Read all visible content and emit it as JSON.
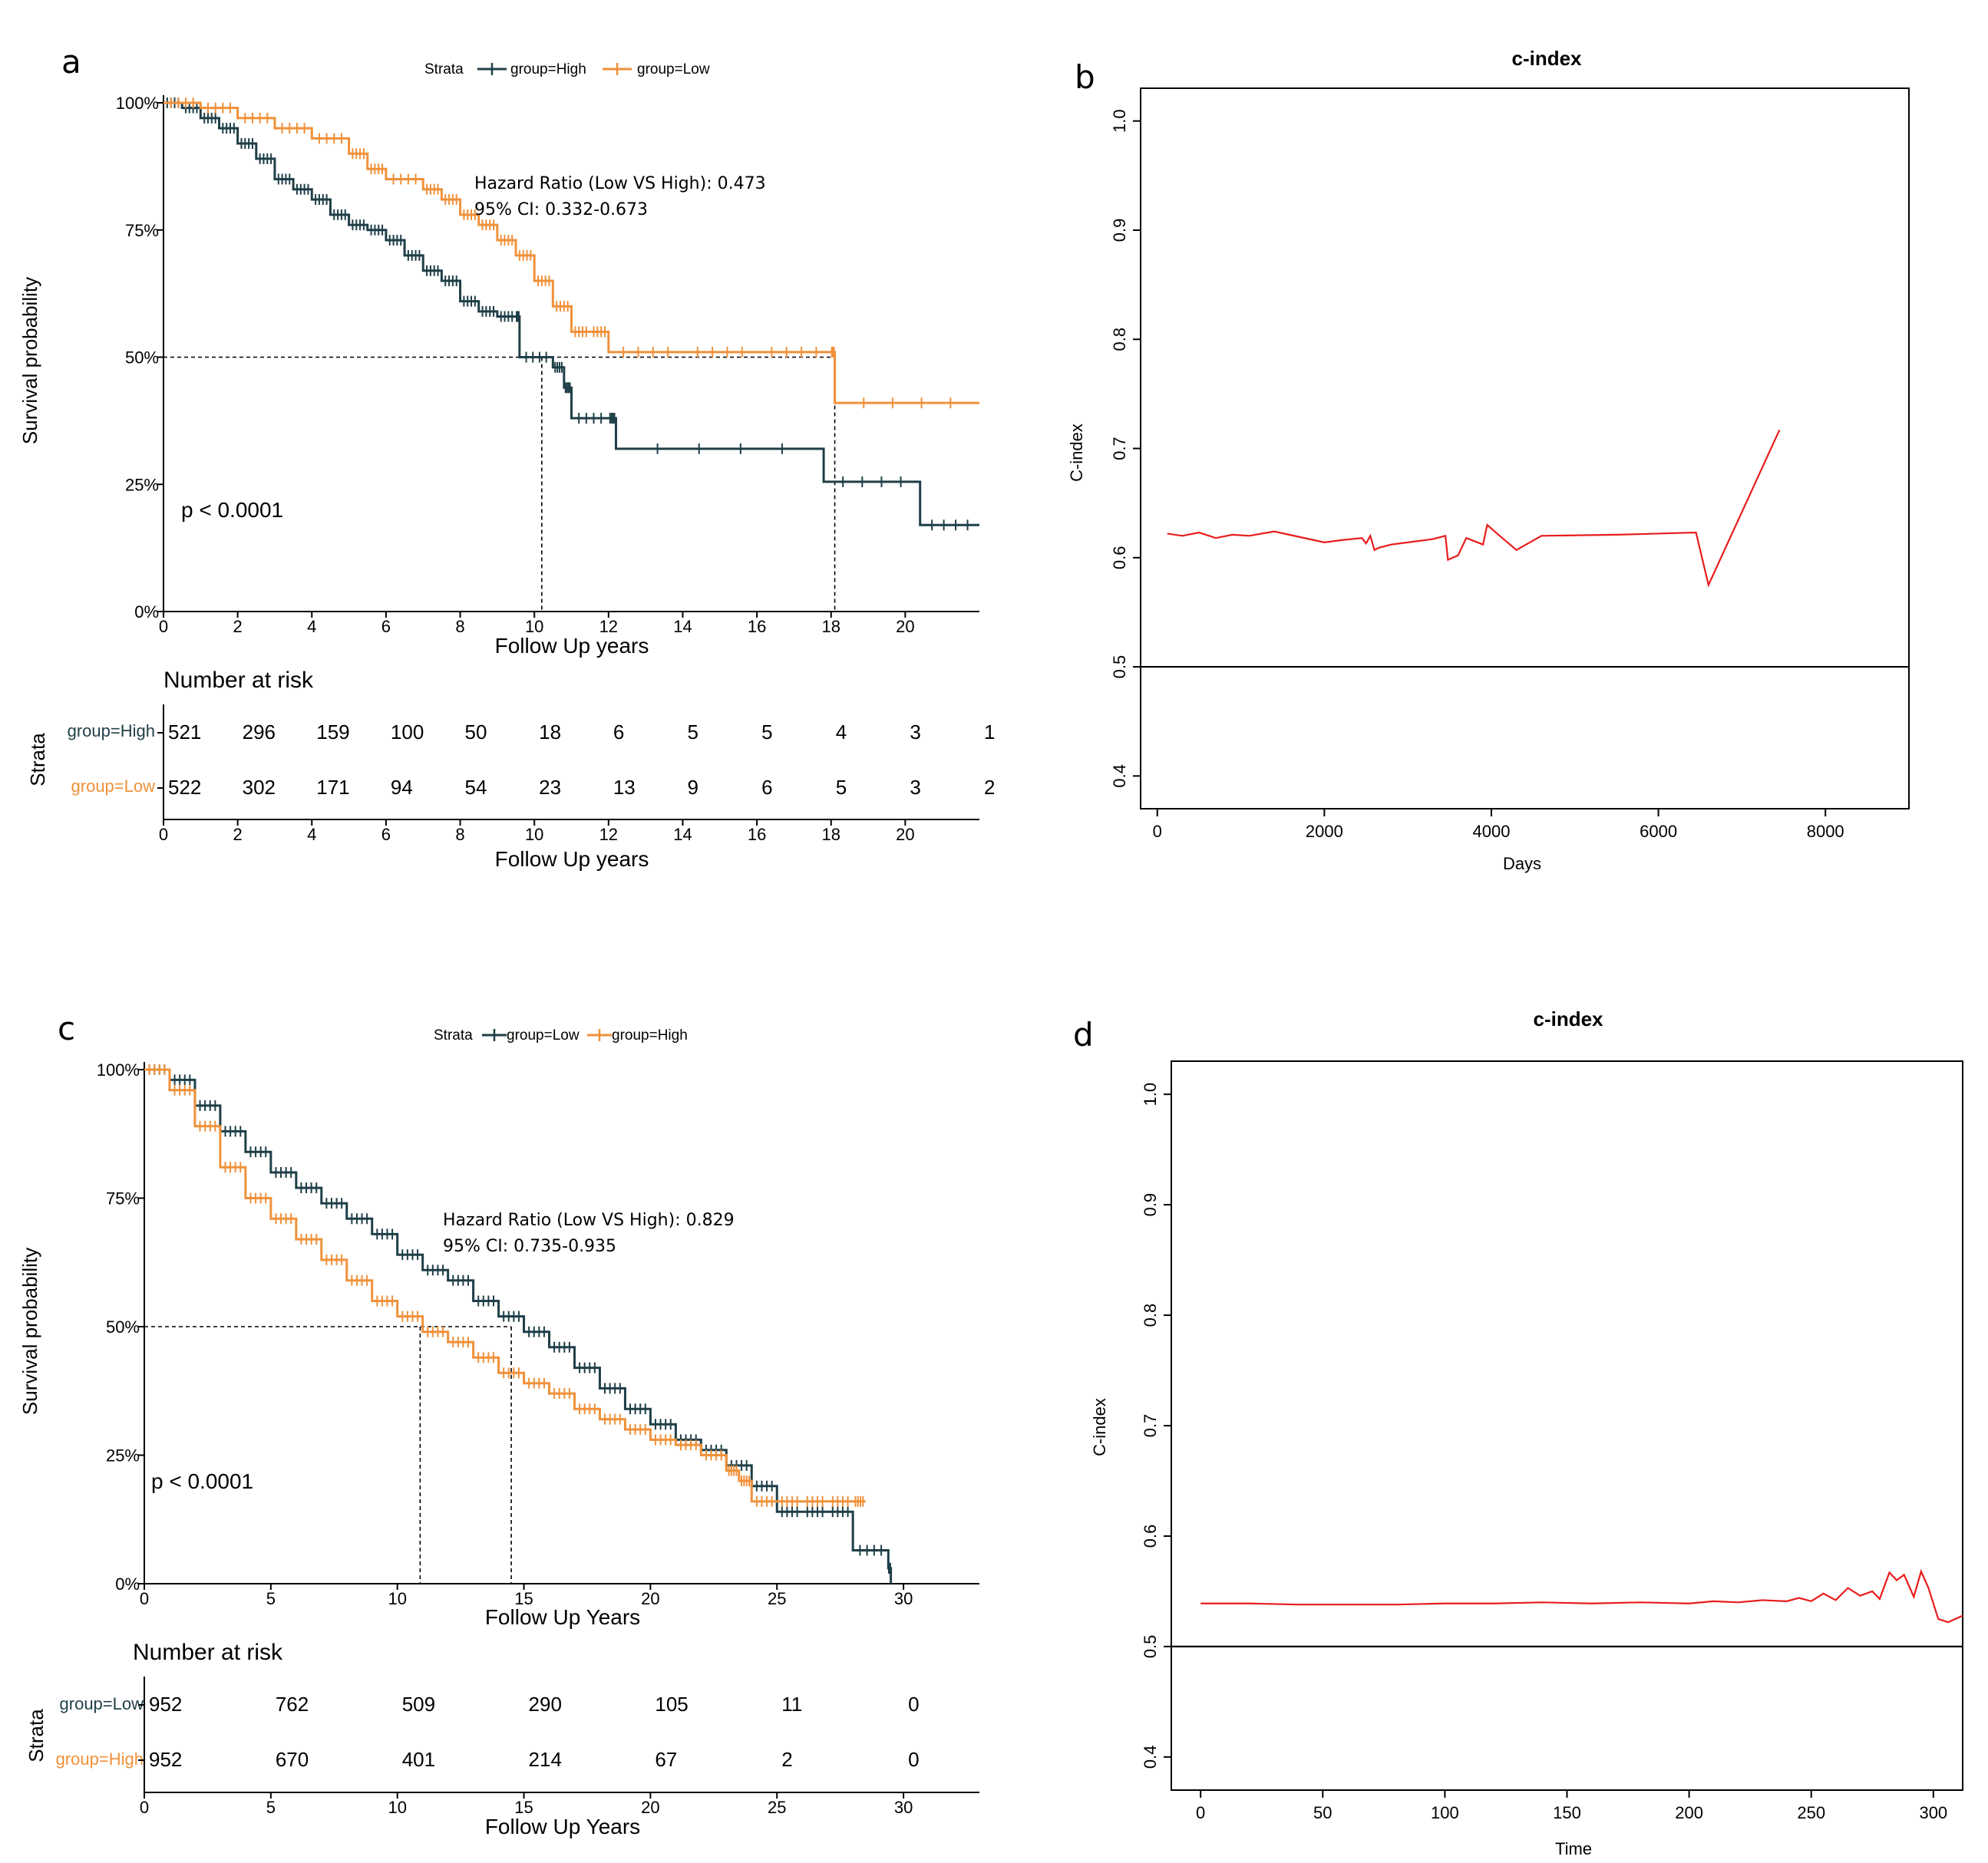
{
  "colors": {
    "high_a": "#1f3f48",
    "low_a": "#f0913a",
    "cindex": "#e81c1c",
    "axis": "#000000"
  },
  "panels": {
    "a": {
      "letter": "a",
      "legend": {
        "title": "Strata",
        "s1": "group=High",
        "s2": "group=Low"
      },
      "hr_text": "Hazard Ratio (Low VS High): 0.473",
      "ci_text": "95% CI: 0.332-0.673",
      "p_text": "p < 0.0001",
      "ylabel": "Survival probability",
      "xlabel": "Follow Up years",
      "risk_title": "Number at risk",
      "risk_ylabel": "Strata",
      "risk_xlabel": "Follow Up years",
      "risk_labels": [
        "group=High",
        "group=Low"
      ]
    },
    "b": {
      "letter": "b",
      "title": "c-index",
      "xlabel": "Days",
      "ylabel": "C-index"
    },
    "c": {
      "letter": "c",
      "legend": {
        "title": "Strata",
        "s1": "group=Low",
        "s2": "group=High"
      },
      "hr_text": "Hazard Ratio (Low VS High): 0.829",
      "ci_text": "95% CI: 0.735-0.935",
      "p_text": "p < 0.0001",
      "ylabel": "Survival probability",
      "xlabel": "Follow Up Years",
      "risk_title": "Number at risk",
      "risk_ylabel": "Strata",
      "risk_xlabel": "Follow Up Years",
      "risk_labels": [
        "group=Low",
        "group=High"
      ]
    },
    "d": {
      "letter": "d",
      "title": "c-index",
      "xlabel": "Time",
      "ylabel": "C-index"
    }
  },
  "chart_data": [
    {
      "id": "a",
      "type": "line",
      "subtype": "kaplan-meier",
      "title": "",
      "xlabel": "Follow Up years",
      "ylabel": "Survival probability",
      "xlim": [
        0,
        22
      ],
      "ylim": [
        0,
        1
      ],
      "xticks": [
        0,
        2,
        4,
        6,
        8,
        10,
        12,
        14,
        16,
        18,
        20
      ],
      "yticks": [
        0,
        0.25,
        0.5,
        0.75,
        1
      ],
      "ytick_labels": [
        "0%",
        "25%",
        "50%",
        "75%",
        "100%"
      ],
      "median_line_y": 0.5,
      "medians": [
        10.2,
        18.1
      ],
      "series": [
        {
          "name": "group=High",
          "color": "#1f3f48",
          "x": [
            0,
            0.5,
            1,
            1.5,
            2,
            2.5,
            3,
            3.5,
            4,
            4.5,
            5,
            5.5,
            6,
            6.5,
            7,
            7.5,
            8,
            8.5,
            9,
            9.5,
            9.6,
            10.5,
            10.8,
            11,
            12,
            12.2,
            17.8,
            20.4,
            22
          ],
          "y": [
            1,
            0.99,
            0.97,
            0.95,
            0.92,
            0.89,
            0.85,
            0.83,
            0.81,
            0.78,
            0.76,
            0.75,
            0.73,
            0.7,
            0.67,
            0.65,
            0.61,
            0.59,
            0.58,
            0.58,
            0.5,
            0.48,
            0.44,
            0.38,
            0.38,
            0.32,
            0.255,
            0.17,
            0.17
          ]
        },
        {
          "name": "group=Low",
          "color": "#f0913a",
          "x": [
            0,
            1,
            2,
            3,
            4,
            5,
            5.5,
            6,
            7,
            7.5,
            8,
            8.5,
            9,
            9.5,
            10,
            10.5,
            11,
            11.5,
            12,
            14,
            16,
            18,
            18.1,
            22
          ],
          "y": [
            1,
            0.99,
            0.97,
            0.95,
            0.93,
            0.9,
            0.87,
            0.85,
            0.83,
            0.81,
            0.78,
            0.76,
            0.73,
            0.7,
            0.65,
            0.6,
            0.55,
            0.55,
            0.51,
            0.51,
            0.51,
            0.51,
            0.41,
            0.41
          ]
        }
      ],
      "risk_table": {
        "times": [
          0,
          2,
          4,
          6,
          8,
          10,
          12,
          14,
          16,
          18,
          20,
          22
        ],
        "rows": [
          {
            "name": "group=High",
            "values": [
              "521",
              "296",
              "159",
              "100",
              "50",
              "18",
              "6",
              "5",
              "5",
              "4",
              "3",
              "1"
            ]
          },
          {
            "name": "group=Low",
            "values": [
              "522",
              "302",
              "171",
              "94",
              "54",
              "23",
              "13",
              "9",
              "6",
              "5",
              "3",
              "2"
            ]
          }
        ],
        "xticks": [
          0,
          2,
          4,
          6,
          8,
          10,
          12,
          14,
          16,
          18,
          20
        ]
      }
    },
    {
      "id": "b",
      "type": "line",
      "title": "c-index",
      "xlabel": "Days",
      "ylabel": "C-index",
      "xlim": [
        -200,
        9000
      ],
      "ylim": [
        0.37,
        1.03
      ],
      "xticks": [
        0,
        2000,
        4000,
        6000,
        8000
      ],
      "yticks": [
        0.4,
        0.5,
        0.6,
        0.7,
        0.8,
        0.9,
        1.0
      ],
      "ytick_labels": [
        "0.4",
        "0.5",
        "0.6",
        "0.7",
        "0.8",
        "0.9",
        "1.0"
      ],
      "hline": 0.5,
      "series": [
        {
          "name": "c-index",
          "color": "#e81c1c",
          "x": [
            120,
            300,
            500,
            700,
            900,
            1100,
            1400,
            1700,
            2000,
            2200,
            2450,
            2500,
            2550,
            2600,
            2650,
            2800,
            3000,
            3300,
            3450,
            3480,
            3600,
            3700,
            3800,
            3900,
            3950,
            4100,
            4300,
            4600,
            5500,
            6450,
            6600,
            7450
          ],
          "y": [
            0.622,
            0.62,
            0.623,
            0.618,
            0.621,
            0.62,
            0.624,
            0.619,
            0.614,
            0.616,
            0.618,
            0.613,
            0.62,
            0.607,
            0.609,
            0.612,
            0.614,
            0.617,
            0.62,
            0.598,
            0.602,
            0.618,
            0.615,
            0.612,
            0.63,
            0.62,
            0.607,
            0.62,
            0.621,
            0.623,
            0.575,
            0.717
          ]
        }
      ]
    },
    {
      "id": "c",
      "type": "line",
      "subtype": "kaplan-meier",
      "title": "",
      "xlabel": "Follow Up Years",
      "ylabel": "Survival probability",
      "xlim": [
        0,
        33
      ],
      "ylim": [
        0,
        1
      ],
      "xticks": [
        0,
        5,
        10,
        15,
        20,
        25,
        30
      ],
      "yticks": [
        0,
        0.25,
        0.5,
        0.75,
        1
      ],
      "ytick_labels": [
        "0%",
        "25%",
        "50%",
        "75%",
        "100%"
      ],
      "median_line_y": 0.5,
      "medians": [
        10.9,
        14.5
      ],
      "series": [
        {
          "name": "group=Low",
          "color": "#1f3f48",
          "x": [
            0,
            1,
            2,
            3,
            4,
            5,
            6,
            7,
            8,
            9,
            10,
            11,
            12,
            13,
            14,
            15,
            16,
            17,
            18,
            19,
            20,
            21,
            22,
            23,
            24,
            25,
            26,
            27,
            28,
            29.4,
            29.5
          ],
          "y": [
            1,
            0.98,
            0.93,
            0.88,
            0.84,
            0.8,
            0.77,
            0.74,
            0.71,
            0.68,
            0.64,
            0.61,
            0.59,
            0.55,
            0.52,
            0.49,
            0.46,
            0.42,
            0.38,
            0.34,
            0.31,
            0.28,
            0.26,
            0.23,
            0.19,
            0.14,
            0.14,
            0.14,
            0.065,
            0.03,
            0
          ]
        },
        {
          "name": "group=High",
          "color": "#f0913a",
          "x": [
            0,
            1,
            2,
            3,
            4,
            5,
            6,
            7,
            8,
            9,
            10,
            11,
            12,
            13,
            14,
            15,
            16,
            17,
            18,
            19,
            20,
            21,
            22,
            23,
            23.5,
            24,
            25,
            26,
            27,
            28,
            28.5
          ],
          "y": [
            1,
            0.96,
            0.89,
            0.81,
            0.75,
            0.71,
            0.67,
            0.63,
            0.59,
            0.55,
            0.52,
            0.49,
            0.47,
            0.44,
            0.41,
            0.39,
            0.37,
            0.34,
            0.32,
            0.3,
            0.28,
            0.27,
            0.25,
            0.22,
            0.2,
            0.16,
            0.16,
            0.16,
            0.16,
            0.16,
            0.16
          ]
        }
      ],
      "risk_table": {
        "times": [
          0,
          5,
          10,
          15,
          20,
          25,
          30
        ],
        "rows": [
          {
            "name": "group=Low",
            "values": [
              "952",
              "762",
              "509",
              "290",
              "105",
              "11",
              "0"
            ]
          },
          {
            "name": "group=High",
            "values": [
              "952",
              "670",
              "401",
              "214",
              "67",
              "2",
              "0"
            ]
          }
        ],
        "xticks": [
          0,
          5,
          10,
          15,
          20,
          25,
          30
        ]
      }
    },
    {
      "id": "d",
      "type": "line",
      "title": "c-index",
      "xlabel": "Time",
      "ylabel": "C-index",
      "xlim": [
        -12,
        312
      ],
      "ylim": [
        0.37,
        1.03
      ],
      "xticks": [
        0,
        50,
        100,
        150,
        200,
        250,
        300
      ],
      "yticks": [
        0.4,
        0.5,
        0.6,
        0.7,
        0.8,
        0.9,
        1.0
      ],
      "ytick_labels": [
        "0.4",
        "0.5",
        "0.6",
        "0.7",
        "0.8",
        "0.9",
        "1.0"
      ],
      "hline": 0.5,
      "series": [
        {
          "name": "c-index",
          "color": "#e81c1c",
          "x": [
            0,
            20,
            40,
            60,
            80,
            100,
            120,
            140,
            160,
            180,
            200,
            210,
            220,
            230,
            240,
            245,
            250,
            255,
            260,
            265,
            270,
            275,
            278,
            282,
            285,
            288,
            292,
            295,
            298,
            302,
            306,
            312
          ],
          "y": [
            0.539,
            0.539,
            0.538,
            0.538,
            0.538,
            0.539,
            0.539,
            0.54,
            0.539,
            0.54,
            0.539,
            0.541,
            0.54,
            0.542,
            0.541,
            0.544,
            0.541,
            0.548,
            0.542,
            0.553,
            0.546,
            0.55,
            0.543,
            0.567,
            0.56,
            0.565,
            0.545,
            0.568,
            0.553,
            0.525,
            0.522,
            0.528
          ]
        }
      ]
    }
  ]
}
